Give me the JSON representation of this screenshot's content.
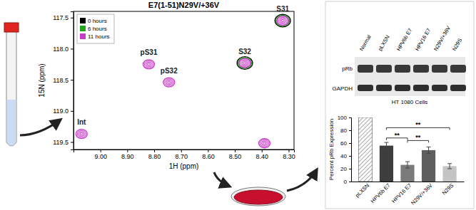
{
  "chart_data": [
    {
      "type": "scatter",
      "title": "E7(1-51)N29V/+36V",
      "x_label": "1H (ppm)",
      "y_label": "15N (ppm)",
      "xlim": [
        9.1,
        8.28
      ],
      "ylim": [
        117.4,
        119.62
      ],
      "xticks": [
        {
          "value": 9.0,
          "label": "9.00"
        },
        {
          "value": 8.9,
          "label": "8.90"
        },
        {
          "value": 8.8,
          "label": "8.80"
        },
        {
          "value": 8.7,
          "label": "8.70"
        },
        {
          "value": 8.6,
          "label": "8.60"
        },
        {
          "value": 8.5,
          "label": "8.50"
        },
        {
          "value": 8.4,
          "label": "8.40"
        },
        {
          "value": 8.3,
          "label": "8.30"
        }
      ],
      "yticks": [
        117.5,
        {
          "value": 118.0,
          "label": "118.0"
        },
        118.5,
        {
          "value": 119.0,
          "label": "119.0"
        },
        119.5
      ],
      "marker": "contour",
      "legend": "top-left",
      "series": [
        {
          "name": "0 hours",
          "color": "#000000",
          "x": [
            8.463,
            8.322
          ],
          "y": [
            118.23,
            117.55
          ]
        },
        {
          "name": "6 hours",
          "color": "#1fa51f",
          "x": [
            8.463,
            8.322
          ],
          "y": [
            118.23,
            117.55
          ]
        },
        {
          "name": "11 hours",
          "color": "#c83cc8",
          "x": [
            9.07,
            8.82,
            8.745,
            8.463,
            8.322,
            8.39
          ],
          "y": [
            119.37,
            118.25,
            118.54,
            118.23,
            117.55,
            119.52
          ],
          "labels": [
            "Int",
            "pS31",
            "pS32",
            "S32",
            "S31",
            null
          ]
        }
      ]
    },
    {
      "type": "bar",
      "y_label": "Percent pRb Expression",
      "categories": [
        "pLXSN",
        "HPV6b E7",
        "HPV16 E7",
        "N29V/+36V",
        "N29S"
      ],
      "values": [
        100,
        56,
        26,
        49,
        24
      ],
      "errors": [
        null,
        5,
        5,
        5,
        4
      ],
      "colors": [
        "#8c8c8c",
        "#3d3d3d",
        "#7a7a7a",
        "#5e5e5e",
        "#c4c4c4"
      ],
      "ylim": [
        0,
        100
      ],
      "yticks": [
        0,
        20,
        40,
        60,
        80,
        100
      ],
      "significance": [
        {
          "from": 1,
          "to": 2,
          "y": 68,
          "label": "**"
        },
        {
          "from": 2,
          "to": 3,
          "y": 64,
          "label": "**"
        },
        {
          "from": 1,
          "to": 4,
          "y": 84,
          "label": "**"
        }
      ]
    }
  ],
  "blot": {
    "lanes": [
      "Normal",
      "pLXSN",
      "HPV6b E7",
      "HPV16 E7",
      "N29V/+36V",
      "N29S"
    ],
    "rows": [
      "pRb",
      "GAPDH"
    ],
    "caption": "HT 1080 Cells"
  }
}
